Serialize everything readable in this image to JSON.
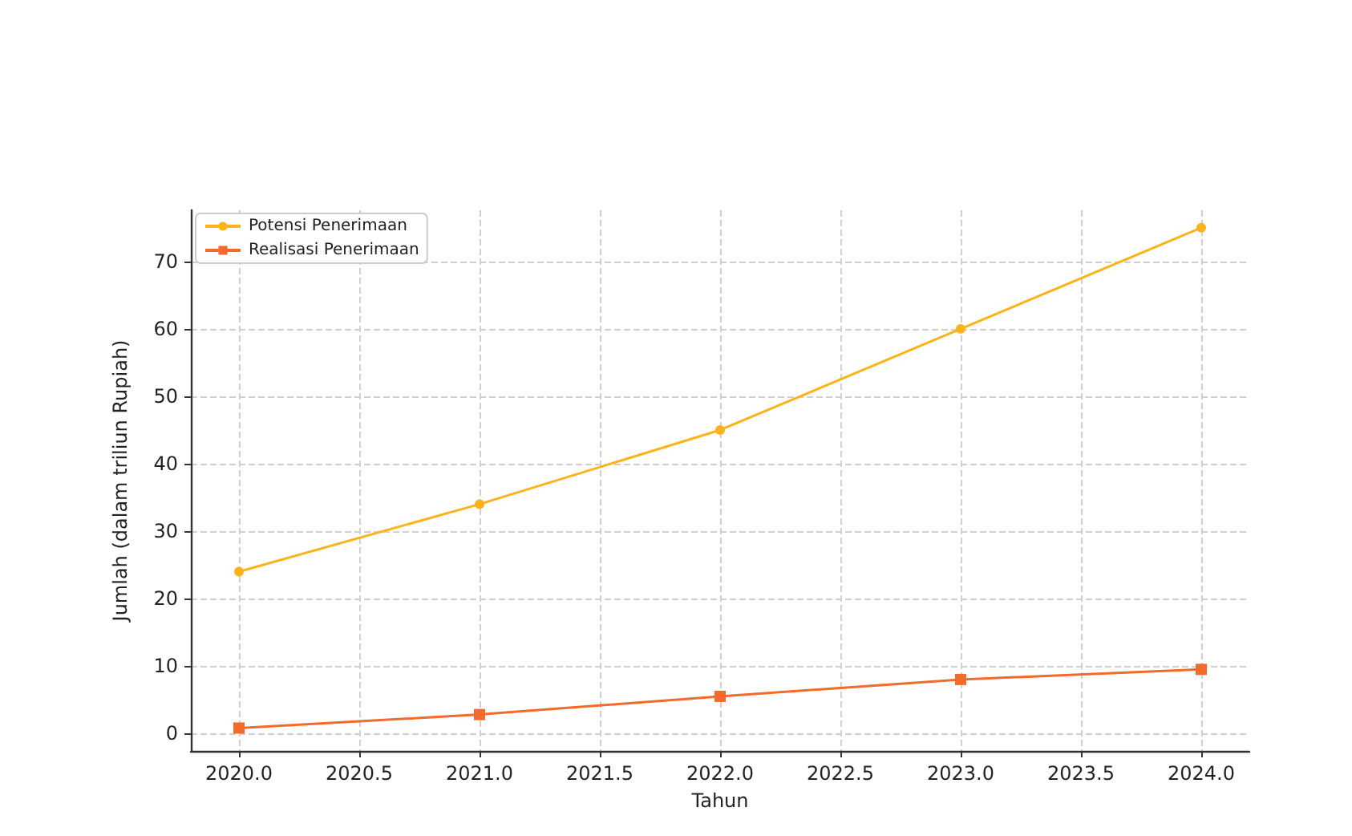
{
  "chart_data": {
    "type": "line",
    "xlabel": "Tahun",
    "ylabel": "Jumlah (dalam triliun Rupiah)",
    "x": [
      2020,
      2021,
      2022,
      2023,
      2024
    ],
    "series": [
      {
        "name": "Potensi Penerimaan",
        "color": "#ffb31a",
        "marker": "circle",
        "values": [
          24,
          34,
          45,
          60,
          75
        ]
      },
      {
        "name": "Realisasi Penerimaan",
        "color": "#f26b2a",
        "marker": "square",
        "values": [
          0.8,
          2.8,
          5.5,
          8,
          9.5
        ]
      }
    ],
    "xlim": [
      2019.8,
      2024.2
    ],
    "xticks": [
      {
        "value": 2020,
        "label": "2020.0"
      },
      {
        "value": 2020.5,
        "label": "2020.5"
      },
      {
        "value": 2021,
        "label": "2021.0"
      },
      {
        "value": 2021.5,
        "label": "2021.5"
      },
      {
        "value": 2022,
        "label": "2022.0"
      },
      {
        "value": 2022.5,
        "label": "2022.5"
      },
      {
        "value": 2023,
        "label": "2023.0"
      },
      {
        "value": 2023.5,
        "label": "2023.5"
      },
      {
        "value": 2024,
        "label": "2024.0"
      }
    ],
    "ylim": [
      -2.6,
      77.6
    ],
    "yticks": [
      0,
      10,
      20,
      30,
      40,
      50,
      60,
      70
    ],
    "grid": true,
    "legend": "top left",
    "line_style": "solid"
  }
}
